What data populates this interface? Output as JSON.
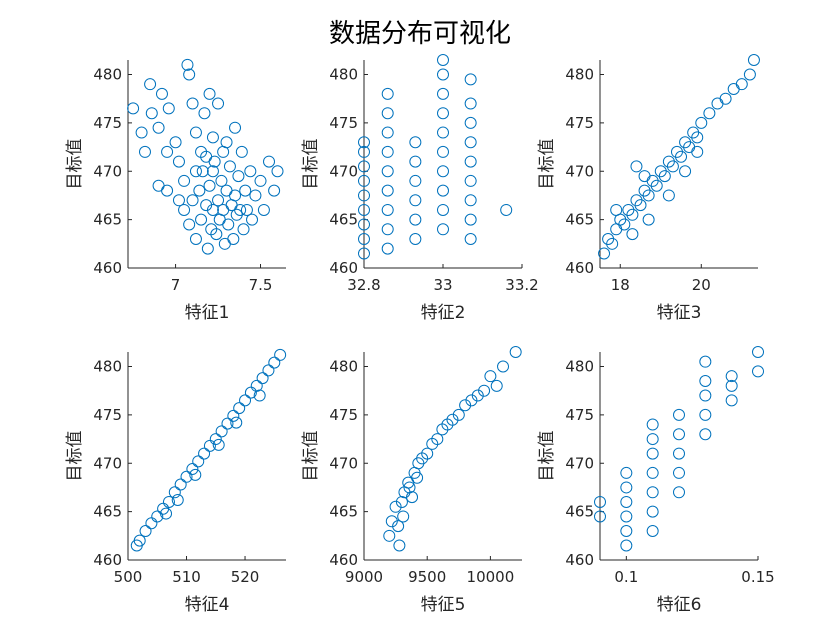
{
  "title": "数据分布可视化",
  "colors": {
    "marker": "#0072BD",
    "axis": "#262626",
    "background": "#ffffff"
  },
  "chart_data": [
    {
      "type": "scatter",
      "xlabel": "特征1",
      "ylabel": "目标值",
      "xlim": [
        6.72,
        7.65
      ],
      "ylim": [
        460,
        481.5
      ],
      "xticks": [
        7,
        7.5
      ],
      "xtick_labels": [
        "7",
        "7.5"
      ],
      "yticks": [
        460,
        465,
        470,
        475,
        480
      ],
      "ytick_labels": [
        "460",
        "465",
        "470",
        "475",
        "480"
      ],
      "points": [
        [
          6.75,
          476.5
        ],
        [
          6.8,
          474
        ],
        [
          6.82,
          472
        ],
        [
          6.85,
          479
        ],
        [
          6.86,
          476
        ],
        [
          6.9,
          474.5
        ],
        [
          6.92,
          478
        ],
        [
          6.95,
          472
        ],
        [
          6.96,
          476.5
        ],
        [
          7.0,
          473
        ],
        [
          7.02,
          471
        ],
        [
          7.05,
          469
        ],
        [
          7.07,
          481
        ],
        [
          7.08,
          480
        ],
        [
          7.1,
          477
        ],
        [
          7.12,
          474
        ],
        [
          7.15,
          472
        ],
        [
          7.17,
          476
        ],
        [
          7.2,
          478
        ],
        [
          7.22,
          470
        ],
        [
          7.25,
          477
        ],
        [
          7.05,
          466
        ],
        [
          7.08,
          464.5
        ],
        [
          7.1,
          467
        ],
        [
          7.12,
          463
        ],
        [
          7.14,
          468
        ],
        [
          7.15,
          465
        ],
        [
          7.16,
          470
        ],
        [
          7.18,
          466.5
        ],
        [
          7.19,
          462
        ],
        [
          7.2,
          468.5
        ],
        [
          7.21,
          464
        ],
        [
          7.22,
          466
        ],
        [
          7.23,
          471
        ],
        [
          7.24,
          463.5
        ],
        [
          7.25,
          467
        ],
        [
          7.26,
          465
        ],
        [
          7.27,
          469
        ],
        [
          7.28,
          466
        ],
        [
          7.29,
          462.5
        ],
        [
          7.3,
          468
        ],
        [
          7.31,
          464.5
        ],
        [
          7.32,
          470.5
        ],
        [
          7.33,
          466.5
        ],
        [
          7.34,
          463
        ],
        [
          7.35,
          467.5
        ],
        [
          7.36,
          465.5
        ],
        [
          7.37,
          469.5
        ],
        [
          7.38,
          466
        ],
        [
          7.39,
          472
        ],
        [
          7.4,
          464
        ],
        [
          7.41,
          468
        ],
        [
          7.42,
          466
        ],
        [
          7.44,
          470
        ],
        [
          7.45,
          465
        ],
        [
          7.47,
          467.5
        ],
        [
          7.5,
          469
        ],
        [
          7.52,
          466
        ],
        [
          7.55,
          471
        ],
        [
          7.58,
          468
        ],
        [
          7.3,
          473
        ],
        [
          7.35,
          474.5
        ],
        [
          7.28,
          472
        ],
        [
          7.22,
          473.5
        ],
        [
          7.18,
          471.5
        ],
        [
          7.12,
          470
        ],
        [
          6.95,
          468
        ],
        [
          6.9,
          468.5
        ],
        [
          7.02,
          467
        ],
        [
          7.6,
          470
        ]
      ]
    },
    {
      "type": "scatter",
      "xlabel": "特征2",
      "ylabel": "目标值",
      "xlim": [
        32.8,
        33.2
      ],
      "ylim": [
        460,
        481.5
      ],
      "xticks": [
        32.8,
        33,
        33.2
      ],
      "xtick_labels": [
        "32.8",
        "33",
        "33.2"
      ],
      "yticks": [
        460,
        465,
        470,
        475,
        480
      ],
      "ytick_labels": [
        "460",
        "465",
        "470",
        "475",
        "480"
      ],
      "points": [
        [
          32.8,
          461.5
        ],
        [
          32.8,
          463
        ],
        [
          32.8,
          464.5
        ],
        [
          32.8,
          466
        ],
        [
          32.8,
          467.5
        ],
        [
          32.8,
          469
        ],
        [
          32.8,
          470.5
        ],
        [
          32.8,
          472
        ],
        [
          32.8,
          473
        ],
        [
          32.86,
          462
        ],
        [
          32.86,
          464
        ],
        [
          32.86,
          466
        ],
        [
          32.86,
          468
        ],
        [
          32.86,
          470
        ],
        [
          32.86,
          472
        ],
        [
          32.86,
          474
        ],
        [
          32.86,
          476
        ],
        [
          32.86,
          478
        ],
        [
          32.93,
          463
        ],
        [
          32.93,
          465
        ],
        [
          32.93,
          467
        ],
        [
          32.93,
          469
        ],
        [
          32.93,
          471
        ],
        [
          32.93,
          473
        ],
        [
          33.0,
          464
        ],
        [
          33.0,
          466
        ],
        [
          33.0,
          468
        ],
        [
          33.0,
          470
        ],
        [
          33.0,
          472
        ],
        [
          33.0,
          474
        ],
        [
          33.0,
          476
        ],
        [
          33.0,
          478
        ],
        [
          33.0,
          480
        ],
        [
          33.0,
          481.5
        ],
        [
          33.07,
          463
        ],
        [
          33.07,
          465
        ],
        [
          33.07,
          467
        ],
        [
          33.07,
          469
        ],
        [
          33.07,
          471
        ],
        [
          33.07,
          473
        ],
        [
          33.07,
          475
        ],
        [
          33.07,
          477
        ],
        [
          33.07,
          479.5
        ],
        [
          33.16,
          466
        ]
      ]
    },
    {
      "type": "scatter",
      "xlabel": "特征3",
      "ylabel": "目标值",
      "xlim": [
        17.5,
        21.4
      ],
      "ylim": [
        460,
        481.5
      ],
      "xticks": [
        18,
        20
      ],
      "xtick_labels": [
        "18",
        "20"
      ],
      "yticks": [
        460,
        465,
        470,
        475,
        480
      ],
      "ytick_labels": [
        "460",
        "465",
        "470",
        "475",
        "480"
      ],
      "points": [
        [
          17.6,
          461.5
        ],
        [
          17.7,
          463
        ],
        [
          17.8,
          462.5
        ],
        [
          17.9,
          464
        ],
        [
          18.0,
          465
        ],
        [
          18.1,
          464.5
        ],
        [
          18.2,
          466
        ],
        [
          18.3,
          465.5
        ],
        [
          18.4,
          467
        ],
        [
          18.5,
          466.5
        ],
        [
          18.6,
          468
        ],
        [
          18.7,
          467.5
        ],
        [
          18.8,
          469
        ],
        [
          18.9,
          468.5
        ],
        [
          19.0,
          470
        ],
        [
          19.1,
          469.5
        ],
        [
          19.2,
          471
        ],
        [
          19.3,
          470.5
        ],
        [
          19.4,
          472
        ],
        [
          19.5,
          471.5
        ],
        [
          19.6,
          473
        ],
        [
          19.7,
          472.5
        ],
        [
          19.8,
          474
        ],
        [
          19.9,
          473.5
        ],
        [
          20.0,
          475
        ],
        [
          20.2,
          476
        ],
        [
          20.4,
          477
        ],
        [
          20.6,
          477.5
        ],
        [
          20.8,
          478.5
        ],
        [
          21.0,
          479
        ],
        [
          21.2,
          480
        ],
        [
          21.3,
          481.5
        ],
        [
          18.3,
          463.5
        ],
        [
          18.7,
          465
        ],
        [
          19.2,
          467.5
        ],
        [
          19.6,
          470
        ],
        [
          18.4,
          470.5
        ],
        [
          19.9,
          472
        ],
        [
          17.9,
          466
        ],
        [
          18.6,
          469.5
        ]
      ]
    },
    {
      "type": "scatter",
      "xlabel": "特征4",
      "ylabel": "目标值",
      "xlim": [
        500,
        527
      ],
      "ylim": [
        460,
        481.5
      ],
      "xticks": [
        500,
        510,
        520
      ],
      "xtick_labels": [
        "500",
        "510",
        "520"
      ],
      "yticks": [
        460,
        465,
        470,
        475,
        480
      ],
      "ytick_labels": [
        "460",
        "465",
        "470",
        "475",
        "480"
      ],
      "points": [
        [
          501.5,
          461.5
        ],
        [
          502,
          462
        ],
        [
          503,
          463
        ],
        [
          504,
          463.8
        ],
        [
          505,
          464.5
        ],
        [
          506,
          465.3
        ],
        [
          507,
          466
        ],
        [
          508,
          467
        ],
        [
          509,
          467.8
        ],
        [
          510,
          468.6
        ],
        [
          511,
          469.4
        ],
        [
          512,
          470.2
        ],
        [
          513,
          471
        ],
        [
          514,
          471.8
        ],
        [
          515,
          472.5
        ],
        [
          516,
          473.3
        ],
        [
          517,
          474.1
        ],
        [
          518,
          474.9
        ],
        [
          519,
          475.7
        ],
        [
          520,
          476.5
        ],
        [
          521,
          477.3
        ],
        [
          522,
          478
        ],
        [
          523,
          478.8
        ],
        [
          524,
          479.6
        ],
        [
          525,
          480.4
        ],
        [
          526,
          481.2
        ],
        [
          506.5,
          464.8
        ],
        [
          508.5,
          466.2
        ],
        [
          511.5,
          468.8
        ],
        [
          515.5,
          471.9
        ],
        [
          518.5,
          474.2
        ],
        [
          522.5,
          477
        ]
      ]
    },
    {
      "type": "scatter",
      "xlabel": "特征5",
      "ylabel": "目标值",
      "xlim": [
        9000,
        10250
      ],
      "ylim": [
        460,
        481.5
      ],
      "xticks": [
        9000,
        9500,
        10000
      ],
      "xtick_labels": [
        "9000",
        "9500",
        "10000"
      ],
      "yticks": [
        460,
        465,
        470,
        475,
        480
      ],
      "ytick_labels": [
        "460",
        "465",
        "470",
        "475",
        "480"
      ],
      "points": [
        [
          9200,
          462.5
        ],
        [
          9220,
          464
        ],
        [
          9250,
          465.5
        ],
        [
          9270,
          463.5
        ],
        [
          9300,
          466
        ],
        [
          9320,
          467
        ],
        [
          9350,
          468
        ],
        [
          9380,
          466.5
        ],
        [
          9400,
          469
        ],
        [
          9430,
          470
        ],
        [
          9460,
          470.5
        ],
        [
          9500,
          471
        ],
        [
          9540,
          472
        ],
        [
          9580,
          472.5
        ],
        [
          9620,
          473.5
        ],
        [
          9660,
          474
        ],
        [
          9700,
          474.5
        ],
        [
          9750,
          475
        ],
        [
          9800,
          476
        ],
        [
          9850,
          476.5
        ],
        [
          9900,
          477
        ],
        [
          9950,
          477.5
        ],
        [
          10000,
          479
        ],
        [
          10050,
          478
        ],
        [
          10100,
          480
        ],
        [
          10200,
          481.5
        ],
        [
          9280,
          461.5
        ],
        [
          9310,
          464.5
        ],
        [
          9360,
          467.5
        ],
        [
          9420,
          468.5
        ]
      ]
    },
    {
      "type": "scatter",
      "xlabel": "特征6",
      "ylabel": "目标值",
      "xlim": [
        0.09,
        0.15
      ],
      "ylim": [
        460,
        481.5
      ],
      "xticks": [
        0.1,
        0.15
      ],
      "xtick_labels": [
        "0.1",
        "0.15"
      ],
      "yticks": [
        460,
        465,
        470,
        475,
        480
      ],
      "ytick_labels": [
        "460",
        "465",
        "470",
        "475",
        "480"
      ],
      "points": [
        [
          0.09,
          464.5
        ],
        [
          0.09,
          466
        ],
        [
          0.1,
          461.5
        ],
        [
          0.1,
          463
        ],
        [
          0.1,
          464.5
        ],
        [
          0.1,
          466
        ],
        [
          0.1,
          467.5
        ],
        [
          0.1,
          469
        ],
        [
          0.11,
          463
        ],
        [
          0.11,
          465
        ],
        [
          0.11,
          467
        ],
        [
          0.11,
          469
        ],
        [
          0.11,
          471
        ],
        [
          0.11,
          472.5
        ],
        [
          0.11,
          474
        ],
        [
          0.12,
          467
        ],
        [
          0.12,
          469
        ],
        [
          0.12,
          471
        ],
        [
          0.12,
          473
        ],
        [
          0.12,
          475
        ],
        [
          0.13,
          473
        ],
        [
          0.13,
          475
        ],
        [
          0.13,
          477
        ],
        [
          0.13,
          478.5
        ],
        [
          0.13,
          480.5
        ],
        [
          0.14,
          476.5
        ],
        [
          0.14,
          478
        ],
        [
          0.14,
          479
        ],
        [
          0.15,
          479.5
        ],
        [
          0.15,
          481.5
        ]
      ]
    }
  ]
}
